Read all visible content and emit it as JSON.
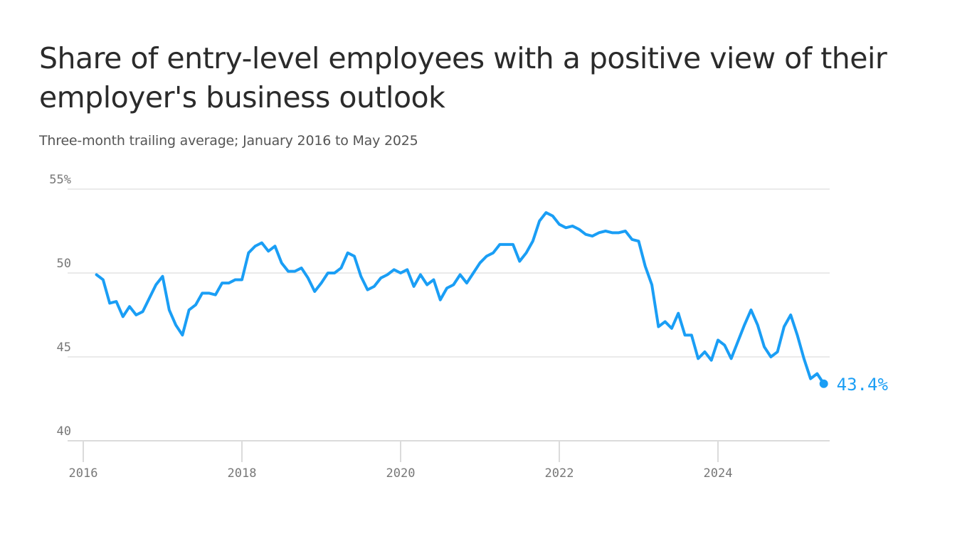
{
  "chart_data": {
    "type": "line",
    "title": "Share of entry-level employees with a positive view of their employer's business outlook",
    "subtitle": "Three-month trailing average; January 2016 to May 2025",
    "xlabel": "",
    "ylabel": "",
    "ylim": [
      40,
      55
    ],
    "y_ticks": [
      "55%",
      "50",
      "45",
      "40"
    ],
    "y_tick_values": [
      55,
      50,
      45,
      40
    ],
    "x_ticks": [
      "2016",
      "2018",
      "2020",
      "2022",
      "2024"
    ],
    "grid": "horizontal",
    "line_color": "#1a9ef5",
    "end_label": "43.4%",
    "series": [
      {
        "x": [
          "2016-03",
          "2016-04",
          "2016-05",
          "2016-06",
          "2016-07",
          "2016-08",
          "2016-09",
          "2016-10",
          "2016-11",
          "2016-12",
          "2017-01",
          "2017-02",
          "2017-03",
          "2017-04",
          "2017-05",
          "2017-06",
          "2017-07",
          "2017-08",
          "2017-09",
          "2017-10",
          "2017-11",
          "2017-12",
          "2018-01",
          "2018-02",
          "2018-03",
          "2018-04",
          "2018-05",
          "2018-06",
          "2018-07",
          "2018-08",
          "2018-09",
          "2018-10",
          "2018-11",
          "2018-12",
          "2019-01",
          "2019-02",
          "2019-03",
          "2019-04",
          "2019-05",
          "2019-06",
          "2019-07",
          "2019-08",
          "2019-09",
          "2019-10",
          "2019-11",
          "2019-12",
          "2020-01",
          "2020-02",
          "2020-03",
          "2020-04",
          "2020-05",
          "2020-06",
          "2020-07",
          "2020-08",
          "2020-09",
          "2020-10",
          "2020-11",
          "2020-12",
          "2021-01",
          "2021-02",
          "2021-03",
          "2021-04",
          "2021-05",
          "2021-06",
          "2021-07",
          "2021-08",
          "2021-09",
          "2021-10",
          "2021-11",
          "2021-12",
          "2022-01",
          "2022-02",
          "2022-03",
          "2022-04",
          "2022-05",
          "2022-06",
          "2022-07",
          "2022-08",
          "2022-09",
          "2022-10",
          "2022-11",
          "2022-12",
          "2023-01",
          "2023-02",
          "2023-03",
          "2023-04",
          "2023-05",
          "2023-06",
          "2023-07",
          "2023-08",
          "2023-09",
          "2023-10",
          "2023-11",
          "2023-12",
          "2024-01",
          "2024-02",
          "2024-03",
          "2024-04",
          "2024-05",
          "2024-06",
          "2024-07",
          "2024-08",
          "2024-09",
          "2024-10",
          "2024-11",
          "2024-12",
          "2025-01",
          "2025-02",
          "2025-03",
          "2025-04",
          "2025-05"
        ],
        "values": [
          49.9,
          49.6,
          48.2,
          48.3,
          47.4,
          48.0,
          47.5,
          47.7,
          48.5,
          49.3,
          49.8,
          47.8,
          46.9,
          46.3,
          47.8,
          48.1,
          48.8,
          48.8,
          48.7,
          49.4,
          49.4,
          49.6,
          49.6,
          51.2,
          51.6,
          51.8,
          51.3,
          51.6,
          50.6,
          50.1,
          50.1,
          50.3,
          49.7,
          48.9,
          49.4,
          50.0,
          50.0,
          50.3,
          51.2,
          51.0,
          49.8,
          49.0,
          49.2,
          49.7,
          49.9,
          50.2,
          50.0,
          50.2,
          49.2,
          49.9,
          49.3,
          49.6,
          48.4,
          49.1,
          49.3,
          49.9,
          49.4,
          50.0,
          50.6,
          51.0,
          51.2,
          51.7,
          51.7,
          51.7,
          50.7,
          51.2,
          51.9,
          53.1,
          53.6,
          53.4,
          52.9,
          52.7,
          52.8,
          52.6,
          52.3,
          52.2,
          52.4,
          52.5,
          52.4,
          52.4,
          52.5,
          52.0,
          51.9,
          50.4,
          49.3,
          46.8,
          47.1,
          46.7,
          47.6,
          46.3,
          46.3,
          44.9,
          45.3,
          44.8,
          46.0,
          45.7,
          44.9,
          45.9,
          46.9,
          47.8,
          46.9,
          45.6,
          45.0,
          45.3,
          46.8,
          47.5,
          46.3,
          44.9,
          43.7,
          44.0,
          43.4
        ]
      }
    ]
  }
}
